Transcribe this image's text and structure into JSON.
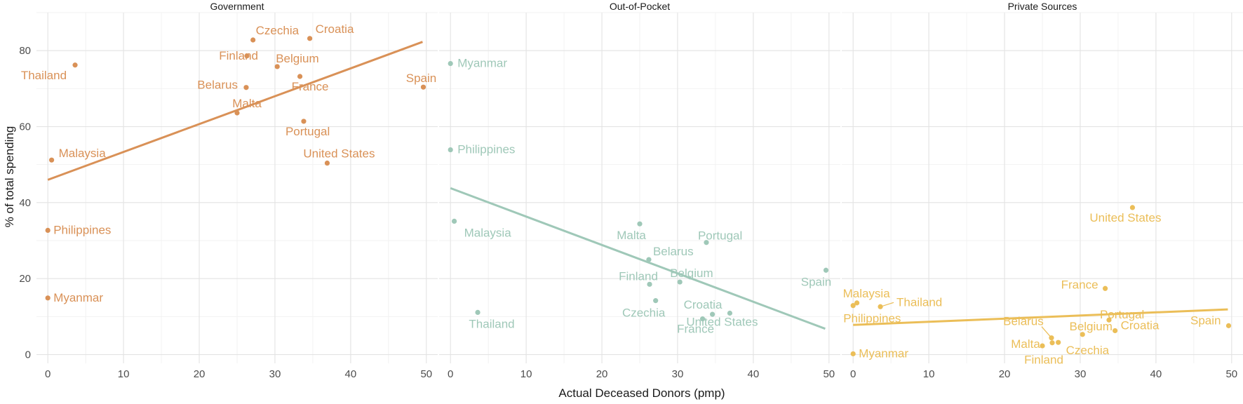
{
  "chart_data": {
    "type": "scatter",
    "xlabel": "Actual Deceased Donors (pmp)",
    "ylabel": "% of total spending",
    "xlim": [
      -1.5,
      51.5
    ],
    "ylim": [
      -2.3,
      90
    ],
    "x_ticks": [
      0,
      10,
      20,
      30,
      40,
      50
    ],
    "y_ticks": [
      0,
      20,
      40,
      60,
      80
    ],
    "grid": true,
    "panels": [
      {
        "title": "Government",
        "color": "#d99157",
        "trend": {
          "x": [
            0,
            49.5
          ],
          "y": [
            46.0,
            82.3
          ]
        },
        "points": [
          {
            "label": "Thailand",
            "x": 3.6,
            "y": 76.2
          },
          {
            "label": "Malaysia",
            "x": 0.5,
            "y": 51.2
          },
          {
            "label": "Philippines",
            "x": 0.0,
            "y": 32.7
          },
          {
            "label": "Myanmar",
            "x": 0.0,
            "y": 14.9
          },
          {
            "label": "Czechia",
            "x": 27.1,
            "y": 82.8
          },
          {
            "label": "Croatia",
            "x": 34.6,
            "y": 83.2
          },
          {
            "label": "Finland",
            "x": 26.3,
            "y": 78.6
          },
          {
            "label": "Belgium",
            "x": 30.3,
            "y": 75.8
          },
          {
            "label": "Belarus",
            "x": 26.2,
            "y": 70.3
          },
          {
            "label": "France",
            "x": 33.3,
            "y": 73.2
          },
          {
            "label": "Malta",
            "x": 25.0,
            "y": 63.6
          },
          {
            "label": "Portugal",
            "x": 33.8,
            "y": 61.4
          },
          {
            "label": "Spain",
            "x": 49.6,
            "y": 70.4
          },
          {
            "label": "United States",
            "x": 36.9,
            "y": 50.4
          }
        ]
      },
      {
        "title": "Out-of-Pocket",
        "color": "#9fc8b8",
        "trend": {
          "x": [
            0,
            49.5
          ],
          "y": [
            43.8,
            6.8
          ]
        },
        "points": [
          {
            "label": "Myanmar",
            "x": 0.0,
            "y": 76.6
          },
          {
            "label": "Philippines",
            "x": 0.0,
            "y": 53.9
          },
          {
            "label": "Malaysia",
            "x": 0.5,
            "y": 35.1
          },
          {
            "label": "Thailand",
            "x": 3.6,
            "y": 11.1
          },
          {
            "label": "Malta",
            "x": 25.0,
            "y": 34.4
          },
          {
            "label": "Portugal",
            "x": 33.8,
            "y": 29.5
          },
          {
            "label": "Belarus",
            "x": 26.2,
            "y": 25.0
          },
          {
            "label": "Finland",
            "x": 26.3,
            "y": 18.5
          },
          {
            "label": "Belgium",
            "x": 30.3,
            "y": 19.1
          },
          {
            "label": "Czechia",
            "x": 27.1,
            "y": 14.2
          },
          {
            "label": "Croatia",
            "x": 34.6,
            "y": 10.6
          },
          {
            "label": "France",
            "x": 33.3,
            "y": 9.4
          },
          {
            "label": "United States",
            "x": 36.9,
            "y": 10.9
          },
          {
            "label": "Spain",
            "x": 49.6,
            "y": 22.2
          }
        ]
      },
      {
        "title": "Private Sources",
        "color": "#ebbe58",
        "trend": {
          "x": [
            0,
            49.5
          ],
          "y": [
            7.8,
            11.9
          ]
        },
        "points": [
          {
            "label": "United States",
            "x": 36.9,
            "y": 38.7
          },
          {
            "label": "Malaysia",
            "x": 0.5,
            "y": 13.6
          },
          {
            "label": "Philippines",
            "x": 0.0,
            "y": 12.9
          },
          {
            "label": "Thailand",
            "x": 3.6,
            "y": 12.6
          },
          {
            "label": "Myanmar",
            "x": 0.0,
            "y": 0.2
          },
          {
            "label": "France",
            "x": 33.3,
            "y": 17.4
          },
          {
            "label": "Portugal",
            "x": 33.8,
            "y": 9.1
          },
          {
            "label": "Croatia",
            "x": 34.6,
            "y": 6.3
          },
          {
            "label": "Spain",
            "x": 49.6,
            "y": 7.6
          },
          {
            "label": "Belarus",
            "x": 26.2,
            "y": 4.4
          },
          {
            "label": "Belgium",
            "x": 30.3,
            "y": 5.3
          },
          {
            "label": "Malta",
            "x": 25.0,
            "y": 2.3
          },
          {
            "label": "Finland",
            "x": 26.3,
            "y": 3.1
          },
          {
            "label": "Czechia",
            "x": 27.1,
            "y": 3.2
          }
        ]
      }
    ]
  }
}
